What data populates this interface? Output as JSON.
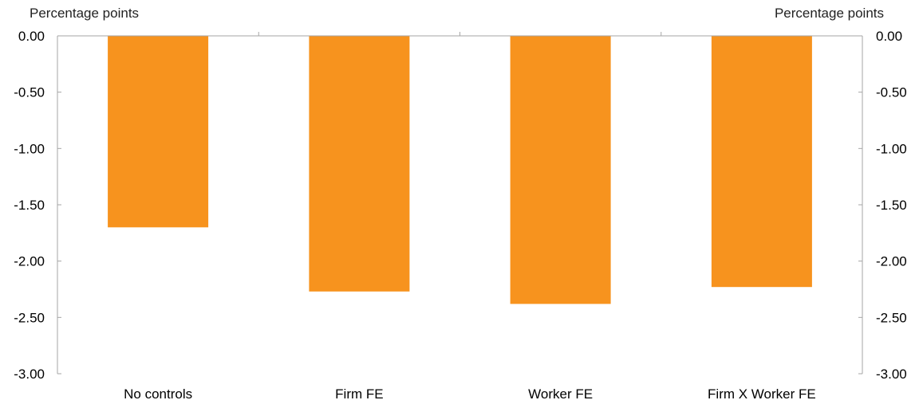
{
  "chart_data": {
    "type": "bar",
    "categories": [
      "No controls",
      "Firm FE",
      "Worker FE",
      "Firm X Worker FE"
    ],
    "values": [
      -1.7,
      -2.27,
      -2.38,
      -2.23
    ],
    "ylabel_left": "Percentage points",
    "ylabel_right": "Percentage points",
    "ylim": [
      -3.0,
      0.0
    ],
    "yticks": [
      "0.00",
      "-0.50",
      "-1.00",
      "-1.50",
      "-2.00",
      "-2.50",
      "-3.00"
    ],
    "ytick_values": [
      0,
      -0.5,
      -1.0,
      -1.5,
      -2.0,
      -2.5,
      -3.0
    ],
    "bar_color": "#F7931E",
    "axis_color": "#A6A6A6",
    "grid": false,
    "legend": "none"
  }
}
